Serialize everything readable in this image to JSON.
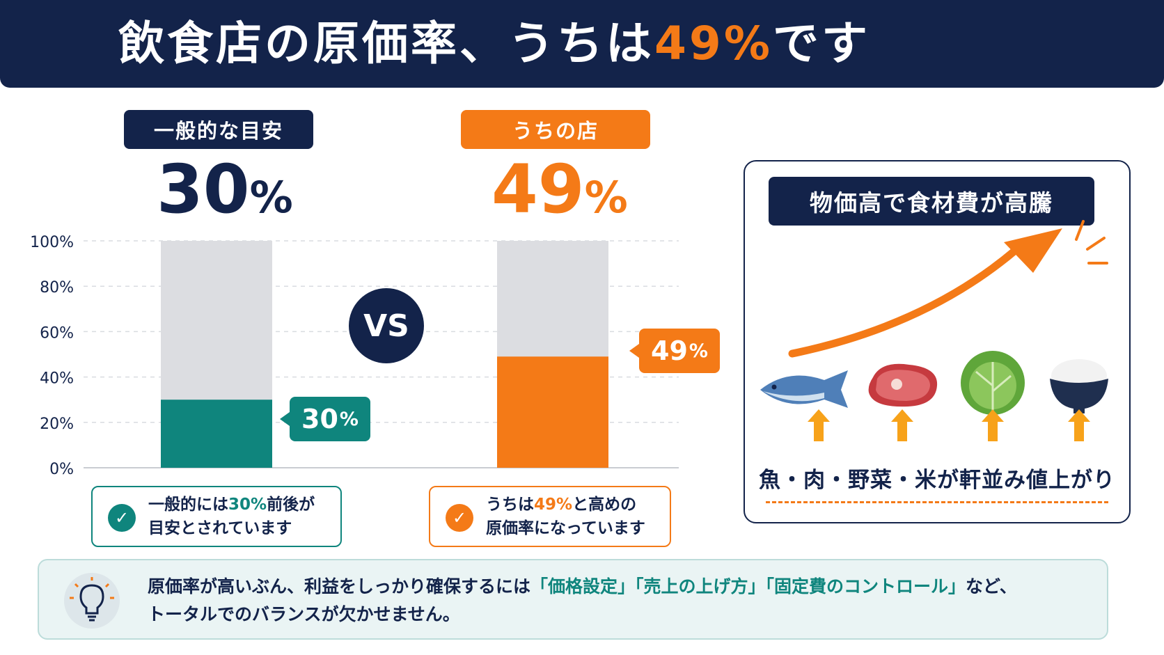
{
  "header": {
    "title_before": "飲食店の原価率、うちは",
    "title_accent": "49%",
    "title_after": "です"
  },
  "comparison": {
    "general": {
      "label": "一般的な目安",
      "value_number": "30",
      "value_unit": "%",
      "note_before": "一般的には",
      "note_highlight": "30%",
      "note_after": "前後が",
      "note_line2": "目安とされています"
    },
    "ours": {
      "label": "うちの店",
      "value_number": "49",
      "value_unit": "%",
      "note_before": "うちは",
      "note_highlight": "49%",
      "note_after": "と高めの",
      "note_line2": "原価率になっています"
    },
    "vs_label": "VS"
  },
  "chart_data": {
    "type": "bar",
    "categories": [
      "一般的な目安",
      "うちの店"
    ],
    "values": [
      30,
      49
    ],
    "ylim": [
      0,
      100
    ],
    "yticks": [
      "0%",
      "20%",
      "40%",
      "60%",
      "80%",
      "100%"
    ],
    "ytick_values": [
      0,
      20,
      40,
      60,
      80,
      100
    ],
    "data_labels": [
      "30%",
      "49%"
    ],
    "grid": true,
    "colors": {
      "general": "#0f857d",
      "ours": "#f47a17",
      "track": "#dcdde1"
    }
  },
  "panel": {
    "title": "物価高で食材費が高騰",
    "caption": "魚・肉・野菜・米が軒並み値上がり",
    "items": [
      "fish-icon",
      "meat-icon",
      "cabbage-icon",
      "rice-icon"
    ]
  },
  "tip": {
    "line1_before": "原価率が高いぶん、利益をしっかり確保するには",
    "line1_highlight": "「価格設定」「売上の上げ方」「固定費のコントロール」",
    "line1_after": "など、",
    "line2": "トータルでのバランスが欠かせません。"
  },
  "colors": {
    "navy": "#13234a",
    "orange": "#f47a17",
    "teal": "#0f857d"
  }
}
